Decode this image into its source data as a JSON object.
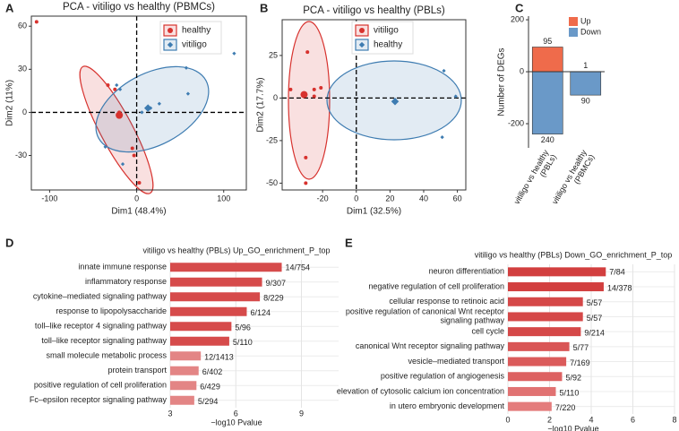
{
  "chart_data": [
    {
      "panel": "A",
      "type": "scatter",
      "title": "PCA - vitiligo vs healthy (PBMCs)",
      "x_label": "Dim1 (48.4%)",
      "y_label": "Dim2 (11%)",
      "xlim": [
        -121,
        126
      ],
      "ylim": [
        -54,
        67
      ],
      "xticks": [
        -100,
        0,
        100
      ],
      "yticks": [
        -30,
        0,
        30,
        60
      ],
      "zero_lines": true,
      "series": [
        {
          "name": "healthy",
          "color": "#D7322E",
          "marker": "circle",
          "x": [
            -115,
            -33,
            -25,
            -20,
            -5,
            -3,
            3
          ],
          "y": [
            63,
            19,
            16,
            0,
            -25,
            -30,
            -49
          ],
          "centroid": [
            -20,
            -2
          ]
        },
        {
          "name": "vitiligo",
          "color": "#3E7CB1",
          "marker": "diamond",
          "x": [
            -23,
            -19,
            -36,
            -16,
            6,
            16,
            26,
            59,
            57,
            112
          ],
          "y": [
            19,
            16,
            -24,
            -36,
            0,
            3,
            6,
            13,
            31,
            41
          ],
          "centroid": [
            13,
            3
          ]
        }
      ]
    },
    {
      "panel": "B",
      "type": "scatter",
      "title": "PCA - vitiligo vs healthy (PBLs)",
      "x_label": "Dim1 (32.5%)",
      "y_label": "Dim2 (17.7%)",
      "xlim": [
        -44,
        65
      ],
      "ylim": [
        -54,
        46
      ],
      "xticks": [
        -20,
        0,
        20,
        40,
        60
      ],
      "yticks": [
        -50,
        -25,
        0,
        25
      ],
      "zero_lines": true,
      "series": [
        {
          "name": "vitiligo",
          "color": "#D7322E",
          "marker": "circle",
          "x": [
            -29,
            -21,
            -39,
            -25,
            -25,
            -30,
            -30
          ],
          "y": [
            27,
            6,
            5,
            1,
            5,
            -35,
            -50
          ],
          "centroid": [
            -31,
            2
          ]
        },
        {
          "name": "healthy",
          "color": "#3E7CB1",
          "marker": "diamond",
          "x": [
            52,
            59,
            51
          ],
          "y": [
            16,
            1,
            -23
          ],
          "centroid": [
            23,
            -2
          ]
        }
      ]
    },
    {
      "panel": "C",
      "type": "bar",
      "stacked": true,
      "y_label": "Number of DEGs",
      "categories": [
        "vitiligo vs healthy\n(PBLs)",
        "vitiligo vs healthy\n(PBMCs)"
      ],
      "series": [
        {
          "name": "Up",
          "color": "#EF6B4B",
          "values": [
            95,
            1
          ]
        },
        {
          "name": "Down",
          "color": "#6A99C8",
          "values": [
            -240,
            -90
          ],
          "value_labels": [
            "240",
            "90"
          ]
        }
      ],
      "ylim": [
        -293,
        214
      ],
      "yticks": [
        -200,
        0,
        200
      ],
      "legend": "top-right"
    },
    {
      "panel": "D",
      "type": "barh",
      "title": "vitiligo vs healthy (PBLs) Up_GO_enrichment_P_top",
      "x_label": "−log10 Pvalue",
      "categories": [
        "innate immune response",
        "inflammatory response",
        "cytokine–mediated signaling pathway",
        "response to lipopolysaccharide",
        "toll–like receptor 4 signaling pathway",
        "toll–like receptor signaling pathway",
        "small molecule metabolic process",
        "protein transport",
        "positive regulation of cell proliferation",
        "Fc–epsilon receptor signaling pathway"
      ],
      "values": [
        8.1,
        7.2,
        7.1,
        6.5,
        5.8,
        5.7,
        4.4,
        4.3,
        4.2,
        4.1
      ],
      "annotations": [
        "14/754",
        "9/307",
        "8/229",
        "6/124",
        "5/96",
        "5/110",
        "12/1413",
        "6/402",
        "6/429",
        "5/294"
      ],
      "colors": [
        "#D64B4B",
        "#D64B4B",
        "#D64B4B",
        "#D64B4B",
        "#D64B4B",
        "#D64B4B",
        "#E38585",
        "#E38585",
        "#E38585",
        "#E38585"
      ],
      "xlim": [
        3,
        10.7
      ],
      "xticks": [
        3,
        6,
        9
      ],
      "grid": true
    },
    {
      "panel": "E",
      "type": "barh",
      "title": "vitiligo vs healthy (PBLs) Down_GO_enrichment_P_top",
      "x_label": "−log10 Pvalue",
      "categories": [
        "neuron differentiation",
        "negative regulation of cell proliferation",
        "cellular response to retinoic acid",
        "positive regulation of canonical Wnt receptor\nsignaling pathway",
        "cell cycle",
        "canonical Wnt receptor signaling pathway",
        "vesicle–mediated transport",
        "positive regulation of angiogenesis",
        "elevation of cytosolic calcium ion concentration",
        "in utero embryonic development"
      ],
      "values": [
        4.7,
        4.6,
        3.6,
        3.6,
        3.5,
        2.95,
        2.8,
        2.6,
        2.3,
        2.1
      ],
      "annotations": [
        "7/84",
        "14/378",
        "5/57",
        "5/57",
        "9/214",
        "5/77",
        "7/169",
        "5/92",
        "5/110",
        "7/220"
      ],
      "colors": [
        "#D23F3F",
        "#D23F3F",
        "#D54848",
        "#D54848",
        "#D54848",
        "#D95555",
        "#DB5B5B",
        "#DD6262",
        "#E17272",
        "#E47C7C"
      ],
      "xlim": [
        0,
        8
      ],
      "xticks": [
        0,
        2,
        4,
        6,
        8
      ],
      "grid": true
    }
  ]
}
